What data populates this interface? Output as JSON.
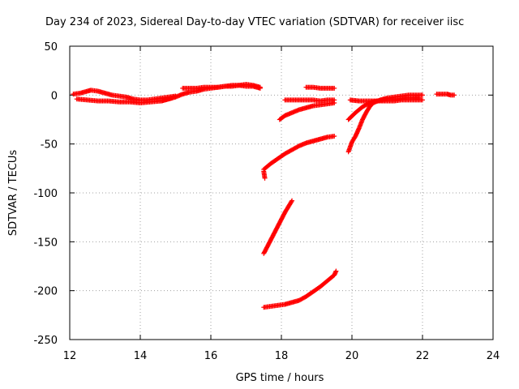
{
  "chart_data": {
    "type": "scatter",
    "title": "Day 234 of 2023, Sidereal Day-to-day VTEC variation (SDTVAR) for receiver iisc",
    "xlabel": "GPS time / hours",
    "ylabel": "SDTVAR / TECUs",
    "xlim": [
      12,
      24
    ],
    "ylim": [
      -250,
      50
    ],
    "xticks": [
      12,
      14,
      16,
      18,
      20,
      22,
      24
    ],
    "yticks": [
      50,
      0,
      -50,
      -100,
      -150,
      -200,
      -250
    ],
    "xtick_labels": [
      "12",
      "14",
      "16",
      "18",
      "20",
      "22",
      "24"
    ],
    "ytick_labels": [
      "50",
      "0",
      "-50",
      "-100",
      "-150",
      "-200",
      "-250"
    ],
    "grid": true,
    "marker": "+",
    "color": "#ff0000",
    "segments": [
      {
        "x": [
          12.1,
          12.3,
          12.5,
          12.6,
          12.8,
          13.0,
          13.2,
          13.4,
          13.6,
          13.8,
          14.0,
          14.2,
          14.4,
          14.6,
          14.8,
          15.0
        ],
        "y": [
          1,
          2,
          4,
          5,
          4,
          2,
          0,
          -1,
          -2,
          -4,
          -5,
          -5,
          -4,
          -3,
          -2,
          -1
        ]
      },
      {
        "x": [
          12.2,
          12.5,
          12.8,
          13.1,
          13.4,
          13.7,
          14.0,
          14.3,
          14.6,
          14.9
        ],
        "y": [
          -4,
          -5,
          -6,
          -6,
          -7,
          -7,
          -8,
          -7,
          -6,
          -3
        ]
      },
      {
        "x": [
          14.6,
          14.8,
          15.0,
          15.2,
          15.4,
          15.6,
          15.8,
          16.0,
          16.2,
          16.4,
          16.6,
          16.8,
          17.0,
          17.2,
          17.4
        ],
        "y": [
          -6,
          -4,
          -2,
          1,
          3,
          4,
          6,
          7,
          8,
          9,
          10,
          10,
          11,
          10,
          8
        ]
      },
      {
        "x": [
          15.2,
          15.4,
          15.6,
          15.8,
          16.0,
          16.2,
          16.4,
          16.6,
          16.8,
          17.0,
          17.2,
          17.4
        ],
        "y": [
          7,
          7,
          7,
          8,
          8,
          8,
          9,
          9,
          10,
          9,
          9,
          7
        ]
      },
      {
        "x": [
          17.5,
          17.53
        ],
        "y": [
          -78,
          -85
        ]
      },
      {
        "x": [
          17.5,
          17.7,
          17.9,
          18.1,
          18.3,
          18.5,
          18.7,
          18.9,
          19.1,
          19.3,
          19.5
        ],
        "y": [
          -76,
          -70,
          -65,
          -60,
          -56,
          -52,
          -49,
          -47,
          -45,
          -43,
          -42
        ]
      },
      {
        "x": [
          17.5,
          17.6,
          17.7,
          17.8,
          17.9,
          18.0,
          18.1,
          18.2,
          18.3
        ],
        "y": [
          -162,
          -155,
          -148,
          -141,
          -134,
          -127,
          -120,
          -114,
          -108
        ]
      },
      {
        "x": [
          17.5,
          17.7,
          17.9,
          18.1,
          18.3,
          18.5,
          18.7,
          18.9,
          19.1,
          19.3,
          19.5,
          19.55
        ],
        "y": [
          -217,
          -216,
          -215,
          -214,
          -212,
          -210,
          -206,
          -201,
          -196,
          -190,
          -184,
          -180
        ]
      },
      {
        "x": [
          17.95,
          18.1,
          18.3,
          18.5,
          18.7,
          18.9,
          19.1,
          19.3,
          19.5
        ],
        "y": [
          -25,
          -21,
          -18,
          -15,
          -13,
          -11,
          -10,
          -9,
          -8
        ]
      },
      {
        "x": [
          18.1,
          18.3,
          18.5,
          18.7,
          18.9,
          19.1,
          19.3,
          19.5
        ],
        "y": [
          -5,
          -5,
          -5,
          -5,
          -5,
          -6,
          -5,
          -5
        ]
      },
      {
        "x": [
          18.7,
          18.9,
          19.1,
          19.3,
          19.5
        ],
        "y": [
          8,
          8,
          7,
          7,
          7
        ]
      },
      {
        "x": [
          19.9,
          20.0,
          20.1,
          20.2,
          20.3,
          20.4,
          20.5,
          20.6,
          20.8,
          21.0,
          21.2,
          21.4,
          21.6,
          21.8,
          22.0
        ],
        "y": [
          -58,
          -48,
          -42,
          -34,
          -25,
          -18,
          -12,
          -8,
          -5,
          -3,
          -2,
          -1,
          0,
          0,
          0
        ]
      },
      {
        "x": [
          19.9,
          20.1,
          20.3,
          20.5,
          20.7,
          20.9,
          21.1,
          21.3,
          21.5,
          21.7,
          21.9
        ],
        "y": [
          -25,
          -18,
          -12,
          -8,
          -6,
          -5,
          -4,
          -4,
          -3,
          -3,
          -3
        ]
      },
      {
        "x": [
          19.95,
          20.2,
          20.4,
          20.6,
          20.8,
          21.0,
          21.2,
          21.4,
          21.6,
          21.8,
          22.0
        ],
        "y": [
          -5,
          -6,
          -6,
          -6,
          -6,
          -6,
          -6,
          -5,
          -5,
          -5,
          -5
        ]
      },
      {
        "x": [
          22.4,
          22.5,
          22.6,
          22.7,
          22.8,
          22.9
        ],
        "y": [
          1,
          1,
          1,
          1,
          0,
          0
        ]
      }
    ]
  }
}
